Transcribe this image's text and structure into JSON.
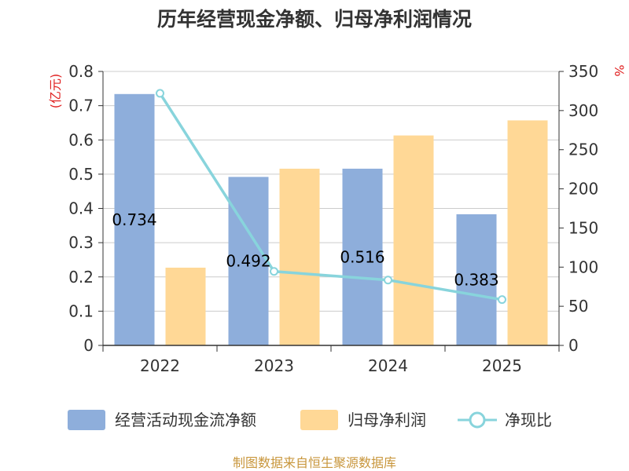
{
  "chart_data": {
    "type": "bar",
    "title": "历年经营现金净额、归母净利润情况",
    "categories": [
      "2022",
      "2023",
      "2024",
      "2025"
    ],
    "series": [
      {
        "name": "经营活动现金流净额",
        "type": "bar",
        "axis": "left",
        "color": "#8eaedb",
        "values": [
          0.734,
          0.492,
          0.516,
          0.383
        ],
        "labels": [
          "0.734",
          "0.492",
          "0.516",
          "0.383"
        ]
      },
      {
        "name": "归母净利润",
        "type": "bar",
        "axis": "left",
        "color": "#ffd896",
        "values": [
          0.227,
          0.516,
          0.613,
          0.657
        ]
      },
      {
        "name": "净现比",
        "type": "line",
        "axis": "right",
        "color": "#88d4dc",
        "values": [
          322,
          94.5,
          83.5,
          58.5
        ]
      }
    ],
    "left_axis": {
      "label": "(亿元)",
      "ylim": [
        0,
        0.8
      ],
      "ticks": [
        "0",
        "0.1",
        "0.2",
        "0.3",
        "0.4",
        "0.5",
        "0.6",
        "0.7",
        "0.8"
      ],
      "label_color": "#e02020"
    },
    "right_axis": {
      "label": "%",
      "ylim": [
        0,
        350
      ],
      "ticks": [
        "0",
        "50",
        "100",
        "150",
        "200",
        "250",
        "300",
        "350"
      ],
      "label_color": "#e02020"
    },
    "grid": true,
    "legend_position": "bottom"
  },
  "footer": {
    "source": "制图数据来自恒生聚源数据库",
    "color": "#c8963c"
  }
}
